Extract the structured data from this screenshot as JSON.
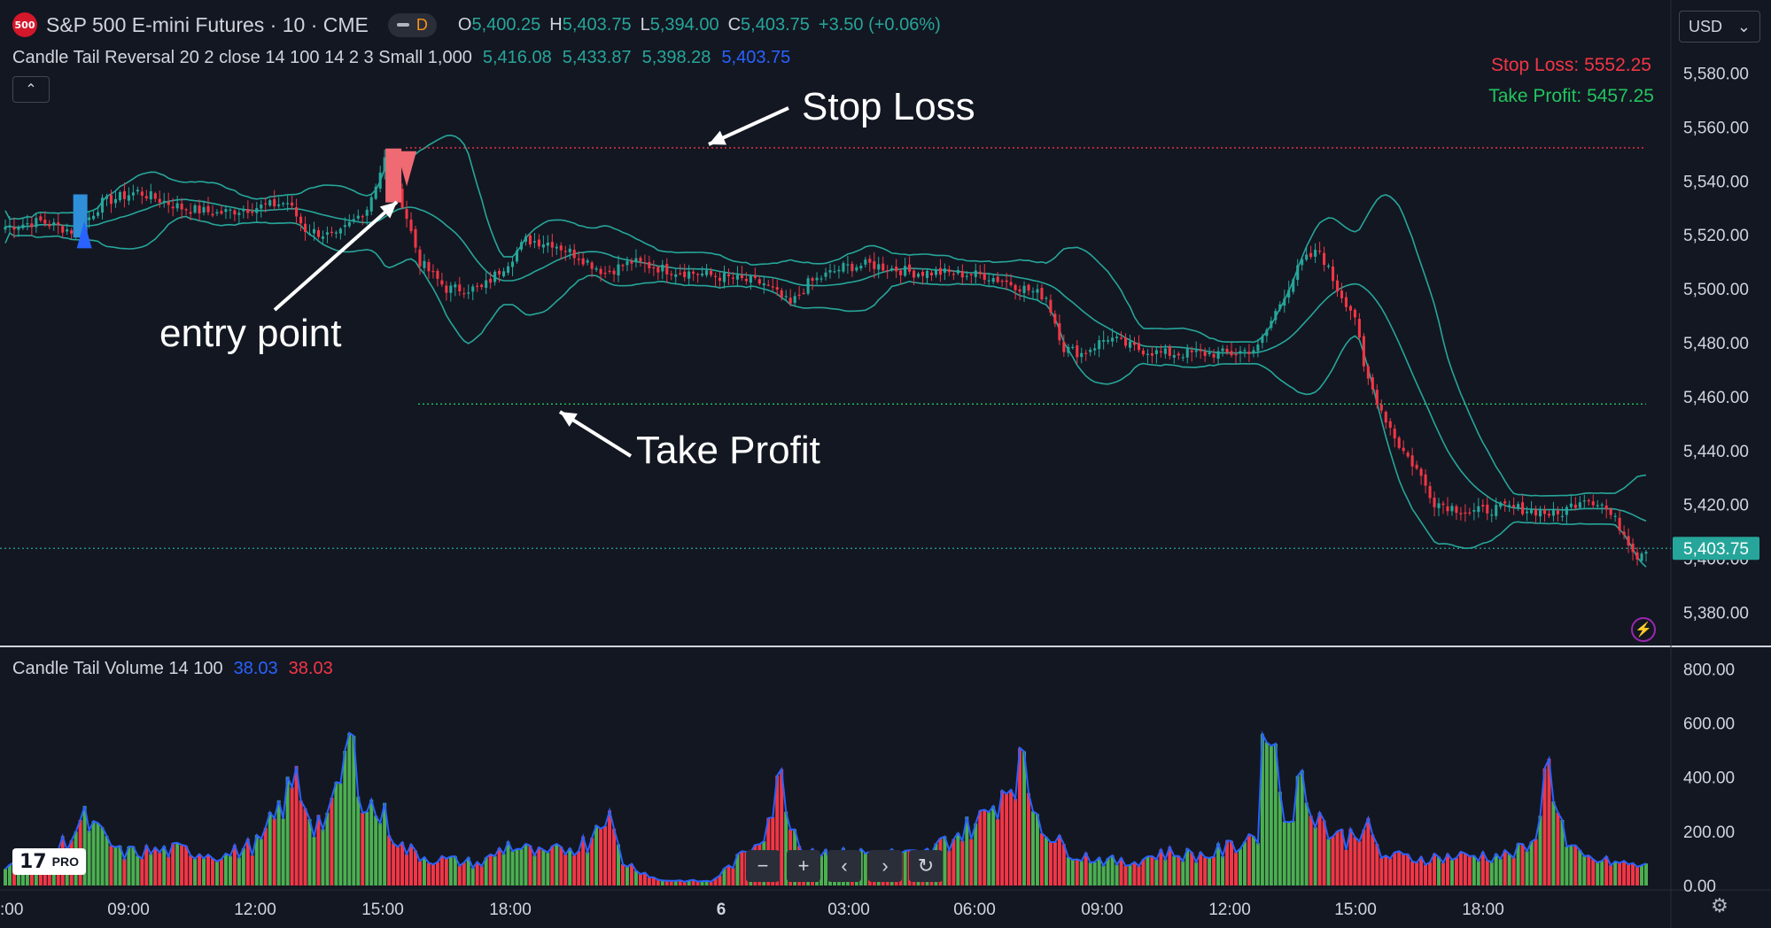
{
  "header": {
    "badge": "500",
    "title": "S&P 500 E-mini Futures · 10 · CME",
    "data_pill": "D",
    "ohlc": {
      "o_key": "O",
      "o": "5,400.25",
      "h_key": "H",
      "h": "5,403.75",
      "l_key": "L",
      "l": "5,394.00",
      "c_key": "C",
      "c": "5,403.75",
      "change": "+3.50 (+0.06%)"
    }
  },
  "indicator": {
    "name": "Candle Tail Reversal 20 2 close 14 100 14 2 3 Small 1,000",
    "v1": "5,416.08",
    "v2": "5,433.87",
    "v3": "5,398.28",
    "v4": "5,403.75"
  },
  "currency": {
    "label": "USD",
    "chevron": "⌄"
  },
  "collapse_glyph": "⌃",
  "levels": {
    "stop_loss_text": "Stop Loss: 5552.25",
    "take_profit_text": "Take Profit: 5457.25",
    "stop_loss": 5552.25,
    "take_profit": 5457.25,
    "last_price_label": "5,403.75",
    "last_price": 5403.75
  },
  "annotations": {
    "stop_loss": "Stop Loss",
    "entry_point": "entry point",
    "take_profit": "Take Profit"
  },
  "volume_indicator": {
    "name": "Candle Tail Volume 14 100",
    "v_blue": "38.03",
    "v_red": "38.03"
  },
  "logo": {
    "text": "17",
    "pro": "PRO"
  },
  "nav": {
    "minus": "−",
    "plus": "+",
    "left": "‹",
    "right": "›",
    "reset": "↻"
  },
  "icons": {
    "bolt": "⚡",
    "settings": "⚙"
  },
  "chart_data": {
    "type": "line",
    "price_axis": {
      "ticks": [
        "5,580.00",
        "5,560.00",
        "5,540.00",
        "5,520.00",
        "5,500.00",
        "5,480.00",
        "5,460.00",
        "5,440.00",
        "5,420.00",
        "5,400.00",
        "5,380.00"
      ],
      "ylim": [
        5370,
        5590
      ]
    },
    "volume_axis": {
      "ticks": [
        "800.00",
        "600.00",
        "400.00",
        "200.00",
        "0.00"
      ],
      "ylim": [
        0,
        850
      ]
    },
    "time_axis": {
      "ticks": [
        ":00",
        "09:00",
        "12:00",
        "15:00",
        "18:00",
        "6",
        "03:00",
        "06:00",
        "09:00",
        "12:00",
        "15:00",
        "18:00"
      ]
    },
    "close_anchors": [
      [
        0,
        5523
      ],
      [
        8,
        5525
      ],
      [
        16,
        5521
      ],
      [
        22,
        5532
      ],
      [
        30,
        5536
      ],
      [
        40,
        5530
      ],
      [
        48,
        5528
      ],
      [
        56,
        5530
      ],
      [
        64,
        5532
      ],
      [
        68,
        5522
      ],
      [
        75,
        5519
      ],
      [
        82,
        5530
      ],
      [
        86,
        5548
      ],
      [
        90,
        5532
      ],
      [
        94,
        5510
      ],
      [
        100,
        5500
      ],
      [
        108,
        5500
      ],
      [
        114,
        5510
      ],
      [
        118,
        5518
      ],
      [
        124,
        5517
      ],
      [
        130,
        5512
      ],
      [
        136,
        5506
      ],
      [
        142,
        5510
      ],
      [
        150,
        5507
      ],
      [
        160,
        5505
      ],
      [
        172,
        5502
      ],
      [
        178,
        5494
      ],
      [
        182,
        5502
      ],
      [
        190,
        5508
      ],
      [
        196,
        5509
      ],
      [
        206,
        5506
      ],
      [
        212,
        5506
      ],
      [
        222,
        5505
      ],
      [
        228,
        5502
      ],
      [
        236,
        5497
      ],
      [
        240,
        5478
      ],
      [
        244,
        5476
      ],
      [
        250,
        5482
      ],
      [
        256,
        5478
      ],
      [
        262,
        5476
      ],
      [
        270,
        5476
      ],
      [
        278,
        5476
      ],
      [
        284,
        5478
      ],
      [
        290,
        5498
      ],
      [
        294,
        5510
      ],
      [
        298,
        5514
      ],
      [
        302,
        5500
      ],
      [
        306,
        5490
      ],
      [
        308,
        5470
      ],
      [
        312,
        5455
      ],
      [
        316,
        5442
      ],
      [
        320,
        5433
      ],
      [
        324,
        5421
      ],
      [
        332,
        5417
      ],
      [
        340,
        5419
      ],
      [
        346,
        5418
      ],
      [
        352,
        5416
      ],
      [
        358,
        5423
      ],
      [
        362,
        5420
      ],
      [
        366,
        5412
      ],
      [
        370,
        5401
      ],
      [
        372,
        5404
      ]
    ],
    "volume_anchors": [
      [
        0,
        80
      ],
      [
        10,
        100
      ],
      [
        18,
        240
      ],
      [
        26,
        120
      ],
      [
        40,
        130
      ],
      [
        50,
        110
      ],
      [
        58,
        160
      ],
      [
        66,
        390
      ],
      [
        70,
        230
      ],
      [
        74,
        260
      ],
      [
        78,
        530
      ],
      [
        82,
        300
      ],
      [
        86,
        250
      ],
      [
        90,
        140
      ],
      [
        96,
        100
      ],
      [
        108,
        80
      ],
      [
        114,
        150
      ],
      [
        122,
        110
      ],
      [
        132,
        160
      ],
      [
        136,
        290
      ],
      [
        140,
        90
      ],
      [
        148,
        20
      ],
      [
        160,
        15
      ],
      [
        168,
        120
      ],
      [
        172,
        210
      ],
      [
        176,
        390
      ],
      [
        180,
        150
      ],
      [
        188,
        110
      ],
      [
        196,
        120
      ],
      [
        208,
        110
      ],
      [
        216,
        190
      ],
      [
        222,
        250
      ],
      [
        230,
        450
      ],
      [
        234,
        270
      ],
      [
        238,
        160
      ],
      [
        244,
        110
      ],
      [
        254,
        80
      ],
      [
        262,
        120
      ],
      [
        272,
        110
      ],
      [
        278,
        140
      ],
      [
        284,
        200
      ],
      [
        286,
        700
      ],
      [
        290,
        250
      ],
      [
        294,
        370
      ],
      [
        300,
        200
      ],
      [
        304,
        170
      ],
      [
        308,
        230
      ],
      [
        312,
        110
      ],
      [
        320,
        100
      ],
      [
        334,
        110
      ],
      [
        340,
        110
      ],
      [
        346,
        140
      ],
      [
        350,
        460
      ],
      [
        354,
        140
      ],
      [
        358,
        100
      ],
      [
        362,
        90
      ],
      [
        372,
        70
      ]
    ]
  }
}
